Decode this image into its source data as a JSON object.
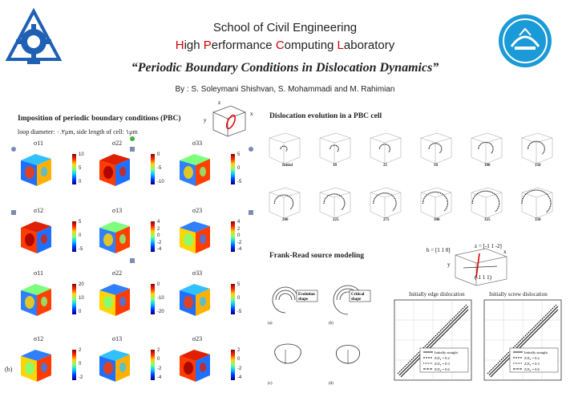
{
  "header": {
    "school": "School of Civil Engineering",
    "lab_parts": [
      "H",
      "igh ",
      "P",
      "erformance ",
      "C",
      "omputing ",
      "L",
      "aboratory"
    ],
    "title": "“Periodic Boundary Conditions in Dislocation Dynamics”",
    "authors": "By : S. Soleymani Shishvan, S. Mohammadi and M. Rahimian"
  },
  "pbc": {
    "title": "Imposition of periodic boundary conditions (PBC)",
    "subtitle": "loop diameter: ۰.۲μm, side length of cell: ۱μm",
    "panel_b": "(b)",
    "rows": [
      {
        "labels": [
          "σ11",
          "σ22",
          "σ33"
        ],
        "ticks": [
          [
            "10",
            "5",
            "0"
          ],
          [
            "0",
            "-5",
            "-10"
          ],
          [
            "5",
            "0",
            "-5"
          ]
        ]
      },
      {
        "labels": [
          "σ12",
          "σ13",
          "σ23"
        ],
        "ticks": [
          [
            "5",
            "0",
            "-5"
          ],
          [
            "4",
            "2",
            "0",
            "-2",
            "-4"
          ],
          [
            "4",
            "2",
            "0",
            "-2",
            "-4"
          ]
        ]
      },
      {
        "labels": [
          "σ11",
          "σ22",
          "σ33"
        ],
        "ticks": [
          [
            "20",
            "10",
            "0"
          ],
          [
            "0",
            "-10",
            "-20"
          ],
          [
            "5",
            "0",
            "-5"
          ]
        ]
      },
      {
        "labels": [
          "σ12",
          "σ13",
          "σ23"
        ],
        "ticks": [
          [
            "2",
            "0",
            "-2"
          ],
          [
            "2",
            "0",
            "-2",
            "-4"
          ],
          [
            "2",
            "0",
            "-2",
            "-4"
          ]
        ]
      }
    ]
  },
  "evolution": {
    "title": "Dislocation evolution in a PBC cell",
    "steps": [
      "Initial",
      "10",
      "25",
      "50",
      "100",
      "150",
      "200",
      "225",
      "275",
      "300",
      "325",
      "350"
    ]
  },
  "frank_read": {
    "title": "Frank-Read source modeling",
    "labels": [
      "Evolution\nshape",
      "Critical\nshape"
    ],
    "panel_labels": [
      "(a)",
      "(b)",
      "(c)",
      "(d)"
    ],
    "cell_axes": {
      "b": "b = [1 1 0]",
      "z": "z = [-1 1 -2]",
      "y": "y",
      "x": "x",
      "n": "(-1 1 1)"
    },
    "plots": [
      {
        "title": "Initially edge dislocation",
        "legend": [
          "Initially straight",
          "Z/Z₀ = 0.2",
          "Z/Z₀ = 0.3",
          "Z/Z₀ = 0.6"
        ]
      },
      {
        "title": "Initially screw dislocation",
        "legend": [
          "Initially straight",
          "Z/Z₀ = 0.2",
          "Z/Z₀ = 0.3",
          "Z/Z₀ = 0.6"
        ]
      }
    ]
  },
  "colors": {
    "lab_initials": "#d40000",
    "logo_blue": "#1f5fb4",
    "logo_teal": "#1a9ad6"
  }
}
